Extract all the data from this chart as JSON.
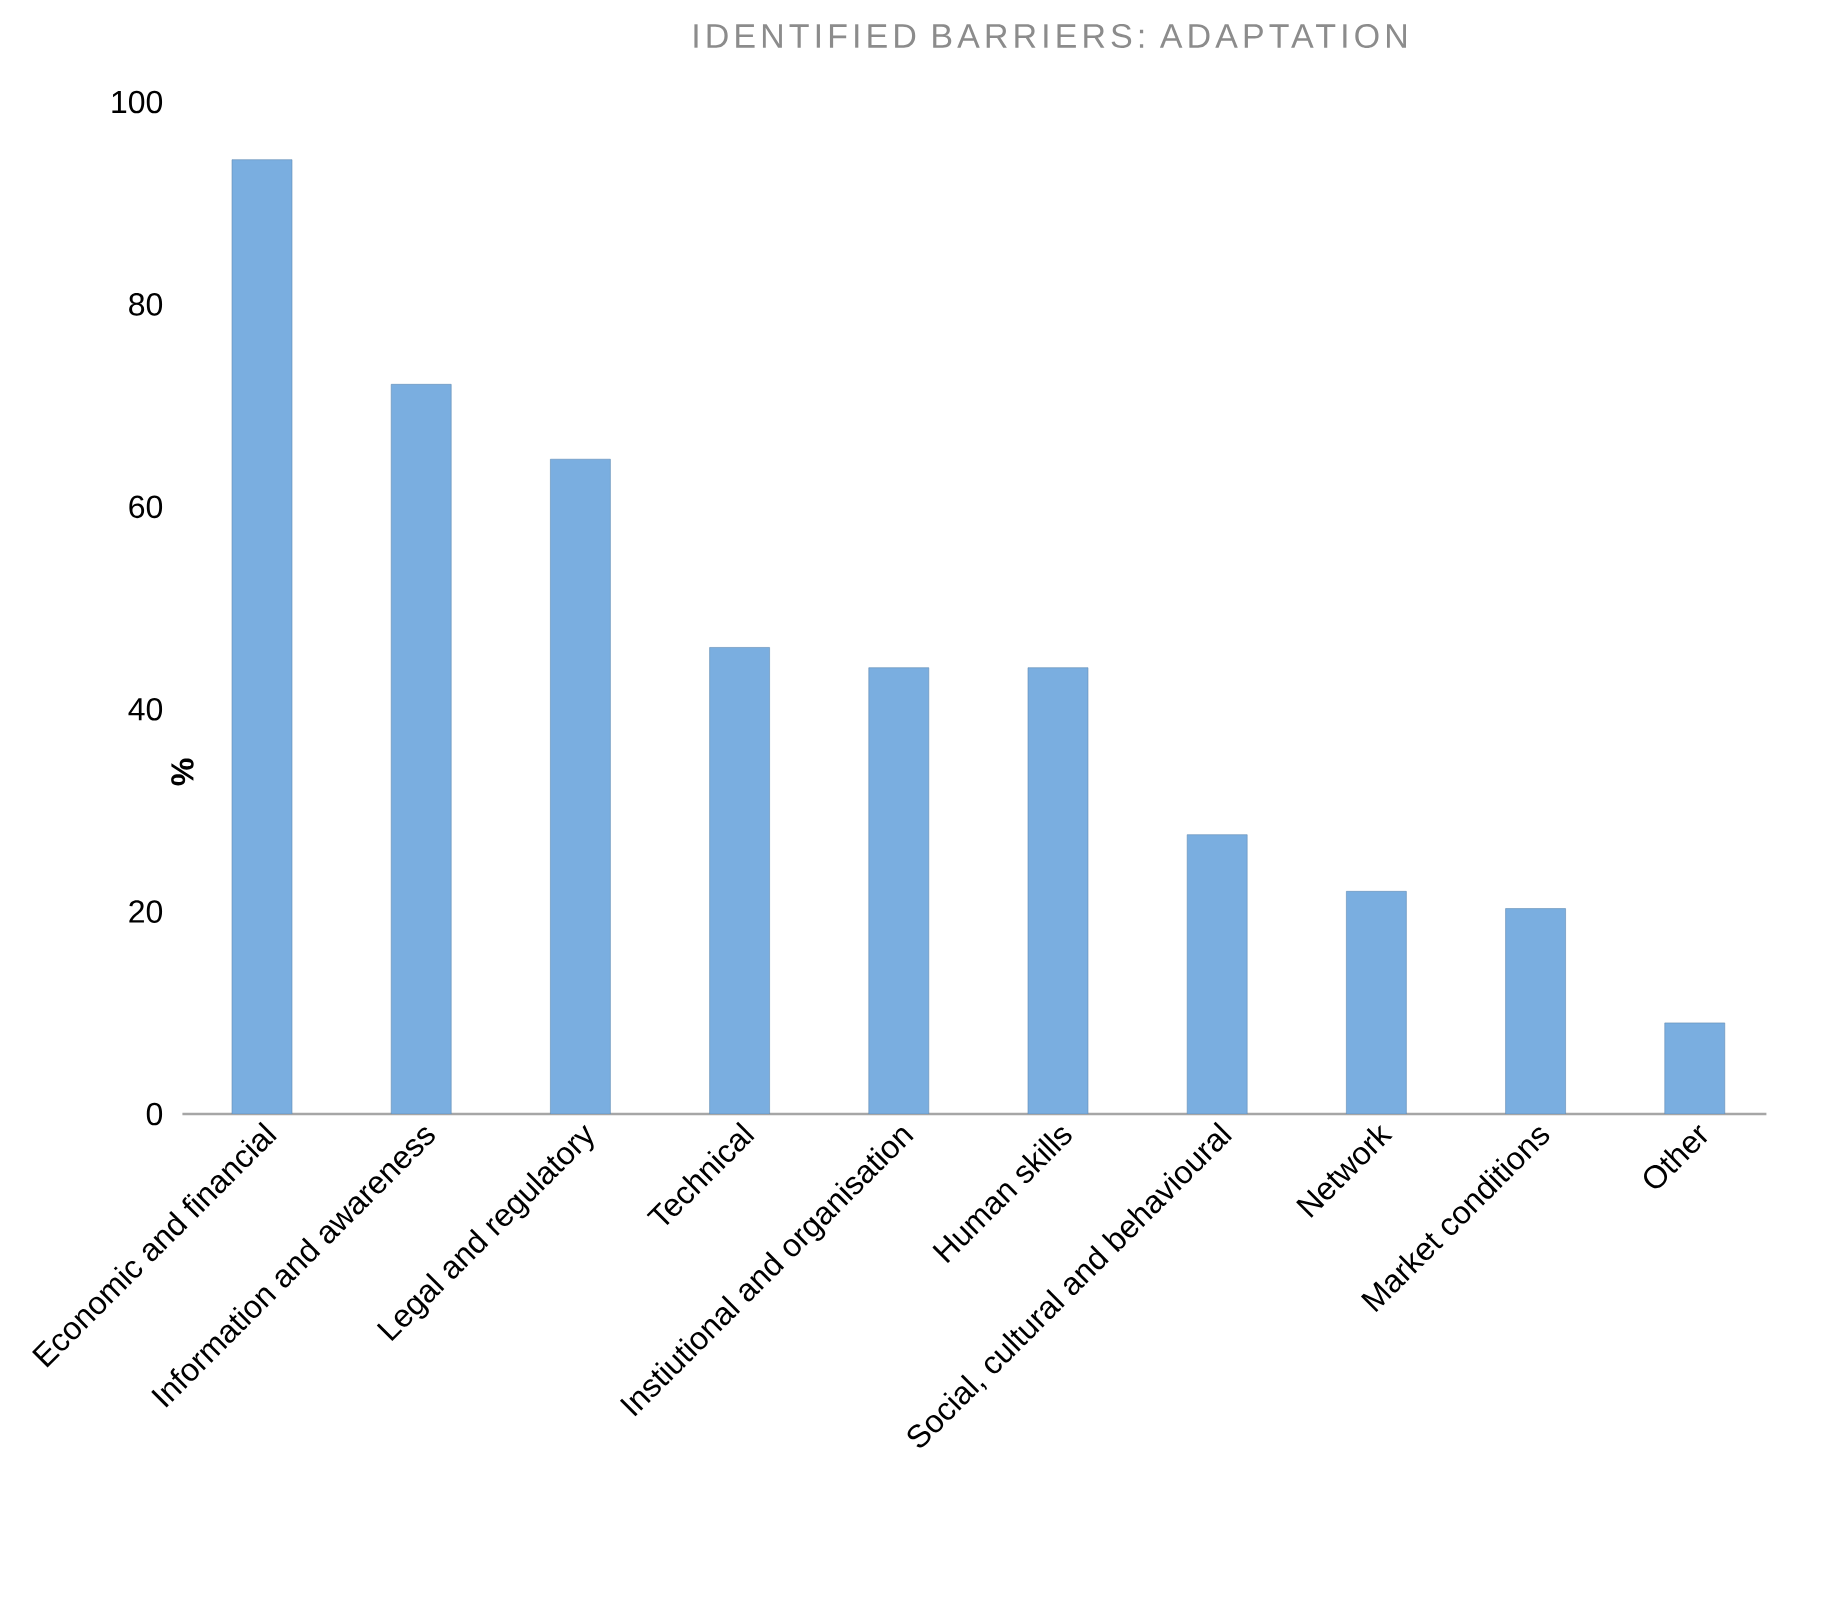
{
  "chart_data": {
    "type": "bar",
    "title": "IDENTIFIED BARRIERS: ADAPTATION",
    "ylabel": "%",
    "categories": [
      "Economic and financial",
      "Information and awareness",
      "Legal and regulatory",
      "Technical",
      "Instiutional and organisation",
      "Human skills",
      "Social, cultural and behavioural",
      "Network",
      "Market conditions",
      "Other"
    ],
    "values": [
      94.3,
      72.1,
      64.7,
      46.1,
      44.1,
      44.1,
      27.6,
      22.0,
      20.3,
      9.0
    ],
    "color": "#7aaee0",
    "ylim": [
      0,
      100
    ],
    "yticks": [
      0,
      20,
      40,
      60,
      80,
      100
    ]
  }
}
